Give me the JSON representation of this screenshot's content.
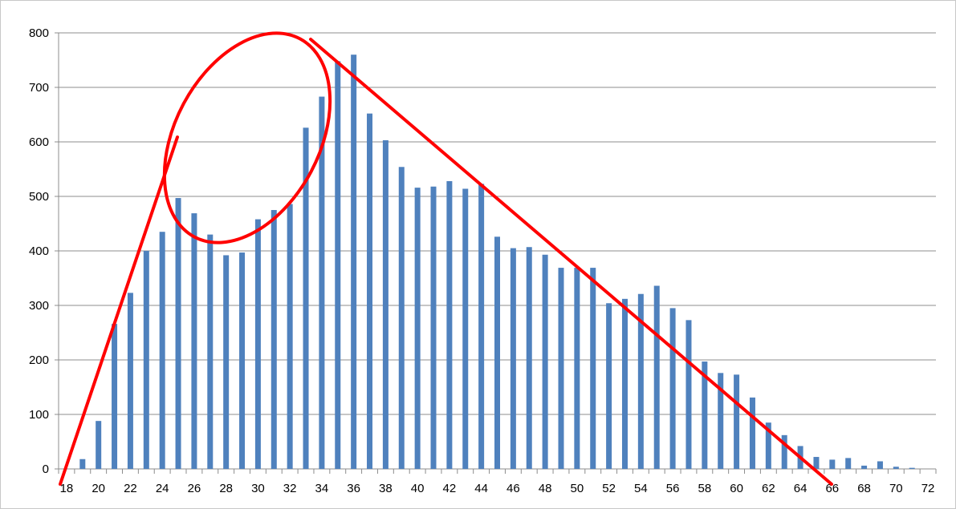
{
  "chart_data": {
    "type": "bar",
    "x": [
      18,
      19,
      20,
      21,
      22,
      23,
      24,
      25,
      26,
      27,
      28,
      29,
      30,
      31,
      32,
      33,
      34,
      35,
      36,
      37,
      38,
      39,
      40,
      41,
      42,
      43,
      44,
      45,
      46,
      47,
      48,
      49,
      50,
      51,
      52,
      53,
      54,
      55,
      56,
      57,
      58,
      59,
      60,
      61,
      62,
      63,
      64,
      65,
      66,
      67,
      68,
      69,
      70,
      71,
      72
    ],
    "values": [
      0,
      18,
      88,
      266,
      323,
      400,
      435,
      497,
      469,
      430,
      392,
      397,
      458,
      475,
      486,
      626,
      683,
      748,
      760,
      652,
      603,
      554,
      516,
      518,
      528,
      514,
      523,
      426,
      405,
      407,
      393,
      369,
      369,
      369,
      304,
      312,
      321,
      336,
      295,
      273,
      197,
      176,
      173,
      131,
      85,
      62,
      42,
      22,
      17,
      20,
      6,
      14,
      4,
      2,
      0
    ],
    "x_tick_labels": [
      "18",
      "20",
      "22",
      "24",
      "26",
      "28",
      "30",
      "32",
      "34",
      "36",
      "38",
      "40",
      "42",
      "44",
      "46",
      "48",
      "50",
      "52",
      "54",
      "56",
      "58",
      "60",
      "62",
      "64",
      "66",
      "68",
      "70",
      "72"
    ],
    "y_tick_labels": [
      "0",
      "100",
      "200",
      "300",
      "400",
      "500",
      "600",
      "700",
      "800"
    ],
    "ylim": [
      0,
      800
    ],
    "grid": true,
    "bar_color": "#4f81bd",
    "annotation_color": "#ff0000"
  }
}
